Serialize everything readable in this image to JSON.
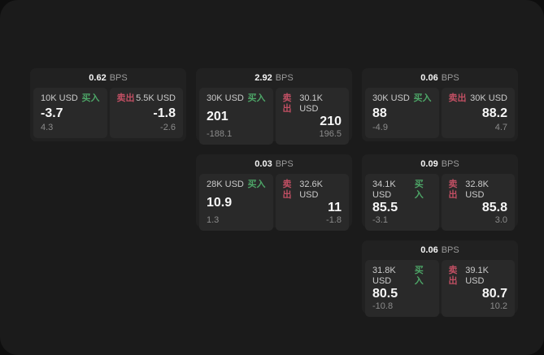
{
  "labels": {
    "bps_unit": "BPS",
    "buy": "买入",
    "sell": "卖出"
  },
  "colors": {
    "buy_accent": "#4da567",
    "sell_accent": "#c04f63",
    "page_bg": "#1b1b1b",
    "card_bg": "#212121",
    "panel_bg": "#292929"
  },
  "cards": [
    {
      "bps": "0.62",
      "buy": {
        "amount": "10K USD",
        "value": "-3.7",
        "sub": "4.3"
      },
      "sell": {
        "amount": "5.5K USD",
        "value": "-1.8",
        "sub": "-2.6"
      }
    },
    {
      "bps": "2.92",
      "buy": {
        "amount": "30K USD",
        "value": "201",
        "sub": "-188.1"
      },
      "sell": {
        "amount": "30.1K USD",
        "value": "210",
        "sub": "196.5"
      }
    },
    {
      "bps": "0.06",
      "buy": {
        "amount": "30K USD",
        "value": "88",
        "sub": "-4.9"
      },
      "sell": {
        "amount": "30K USD",
        "value": "88.2",
        "sub": "4.7"
      }
    },
    {
      "bps": "0.03",
      "buy": {
        "amount": "28K USD",
        "value": "10.9",
        "sub": "1.3"
      },
      "sell": {
        "amount": "32.6K USD",
        "value": "11",
        "sub": "-1.8"
      }
    },
    {
      "bps": "0.09",
      "buy": {
        "amount": "34.1K USD",
        "value": "85.5",
        "sub": "-3.1"
      },
      "sell": {
        "amount": "32.8K USD",
        "value": "85.8",
        "sub": "3.0"
      }
    },
    {
      "bps": "0.06",
      "buy": {
        "amount": "31.8K USD",
        "value": "80.5",
        "sub": "-10.8"
      },
      "sell": {
        "amount": "39.1K USD",
        "value": "80.7",
        "sub": "10.2"
      }
    }
  ]
}
